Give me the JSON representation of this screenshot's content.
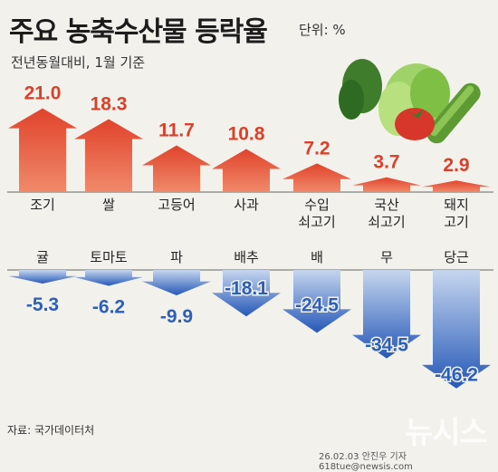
{
  "title": "주요 농축수산물 등락율",
  "unit_label": "단위: %",
  "subtitle": "전년동월대비, 1월 기준",
  "source": "자료: 국가데이터처",
  "credit": "26.02.03 안진우 기자 618tue@newsis.com",
  "watermark": "뉴시스",
  "colors": {
    "up": "#d9412b",
    "down": "#2f63c2",
    "up_label": "#d9412b",
    "down_label": "#2d5fb8"
  },
  "chart_data": [
    {
      "type": "bar",
      "title": "주요 농축수산물 등락율",
      "subtitle": "전년동월대비, 1월 기준",
      "unit": "%",
      "series": [
        {
          "categories": [
            "조기",
            "쌀",
            "고등어",
            "사과",
            "수입\n쇠고기",
            "국산\n쇠고기",
            "돼지\n고기"
          ],
          "values": [
            21.0,
            18.3,
            11.7,
            10.8,
            7.2,
            3.7,
            2.9
          ],
          "value_labels": [
            "21.0",
            "18.3",
            "11.7",
            "10.8",
            "7.2",
            "3.7",
            "2.9"
          ]
        },
        {
          "categories": [
            "귤",
            "토마토",
            "파",
            "배추",
            "배",
            "무",
            "당근"
          ],
          "values": [
            -5.3,
            -6.2,
            -9.9,
            -18.1,
            -24.5,
            -34.5,
            -46.2
          ],
          "value_labels": [
            "-5.3",
            "-6.2",
            "-9.9",
            "-18.1",
            "-24.5",
            "-34.5",
            "-46.2"
          ]
        }
      ]
    }
  ]
}
